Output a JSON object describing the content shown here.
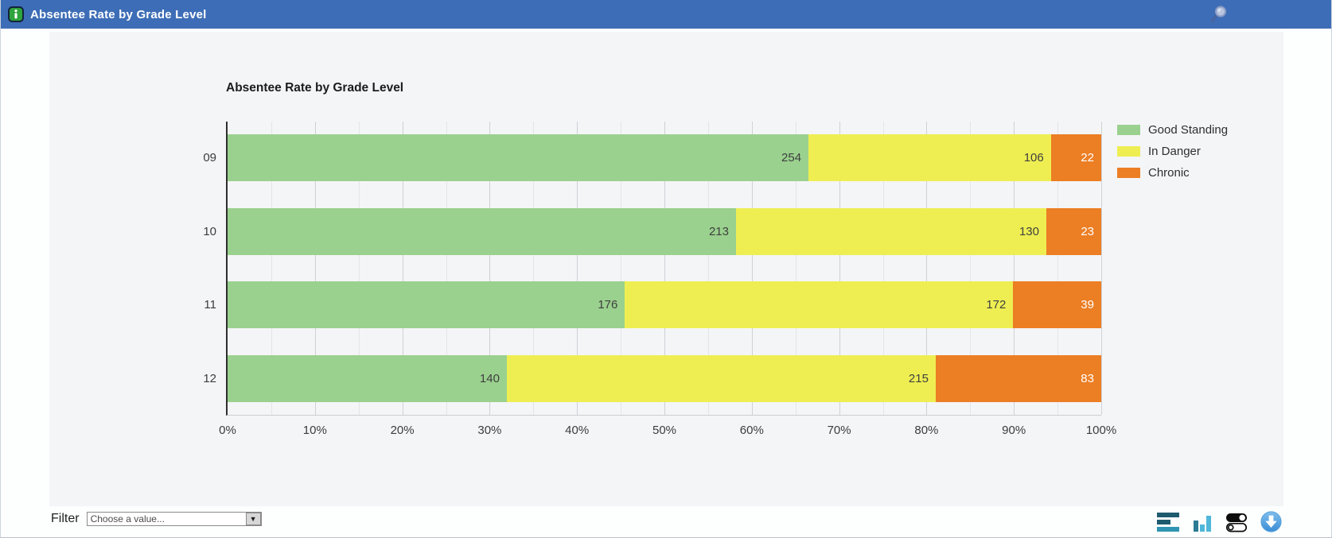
{
  "header": {
    "title": "Absentee Rate by Grade Level",
    "bg_color": "#3d6db6"
  },
  "chart_data": {
    "type": "bar",
    "orientation": "horizontal",
    "stacked": "percent",
    "title": "Absentee Rate by Grade Level",
    "categories": [
      "09",
      "10",
      "11",
      "12"
    ],
    "series": [
      {
        "name": "Good Standing",
        "color": "#9ad18e",
        "label_color": "#3f3f3f",
        "values": [
          254,
          213,
          176,
          140
        ]
      },
      {
        "name": "In Danger",
        "color": "#eeee52",
        "label_color": "#3f3f3f",
        "values": [
          106,
          130,
          172,
          215
        ]
      },
      {
        "name": "Chronic",
        "color": "#ec7e24",
        "label_color": "#ffffff",
        "values": [
          22,
          23,
          39,
          83
        ]
      }
    ],
    "x_ticks": [
      "0%",
      "10%",
      "20%",
      "30%",
      "40%",
      "50%",
      "60%",
      "70%",
      "80%",
      "90%",
      "100%"
    ],
    "xlim": [
      0,
      100
    ],
    "grid": true,
    "legend_position": "top-right"
  },
  "filter": {
    "label": "Filter",
    "dropdown_value": "Choose a value...",
    "dropdown_arrow": "▼"
  },
  "toolbar": {
    "icons": [
      "horizontal-bar-chart-icon",
      "vertical-bar-chart-icon",
      "toggle-switches-icon",
      "download-icon"
    ]
  },
  "colors": {
    "panel_bg": "#f4f5f7",
    "grid_major": "#ced1d6",
    "grid_minor": "#e3e5e8",
    "axis": "#2e2e2e"
  }
}
